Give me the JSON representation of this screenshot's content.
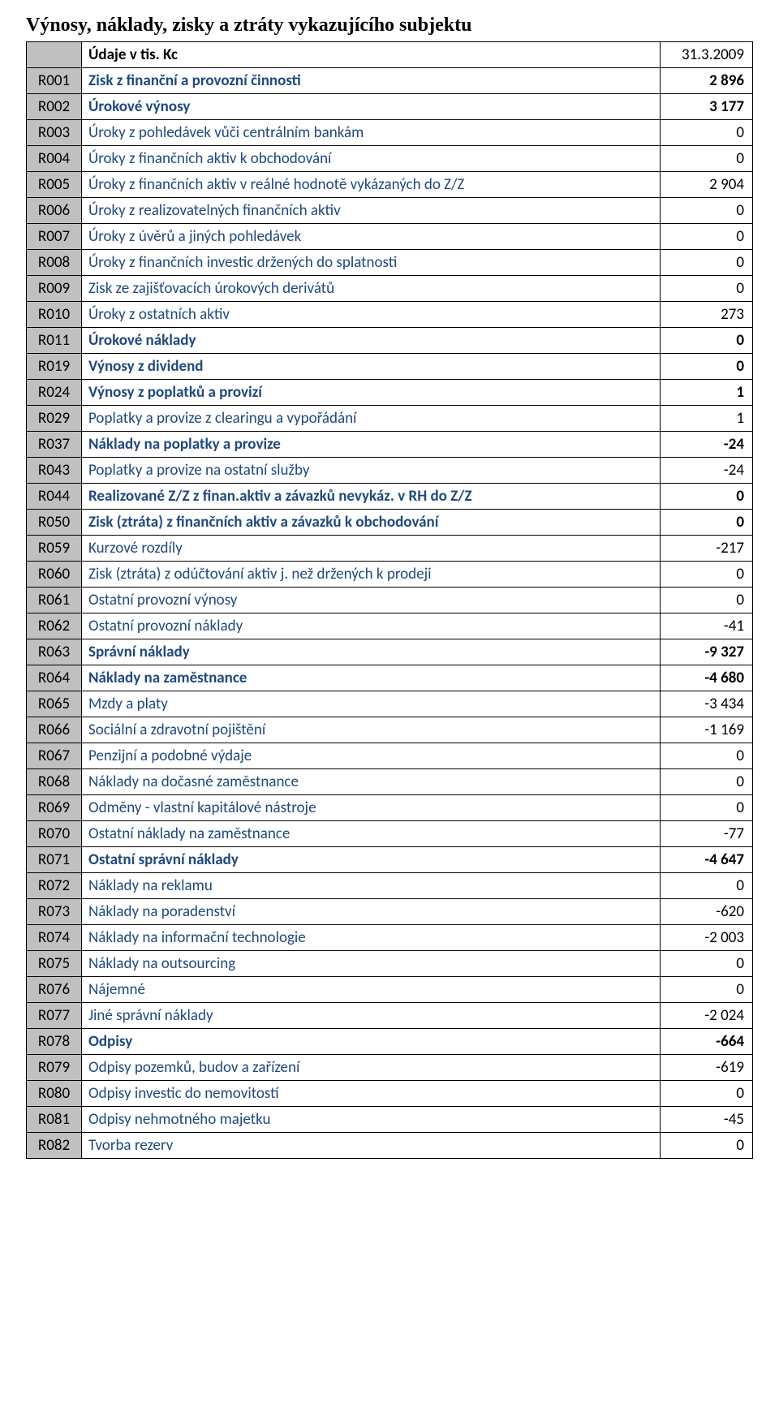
{
  "title": "Výnosy, náklady, zisky a ztráty vykazujícího subjektu",
  "header": {
    "label": "Údaje v tis. Kc",
    "value": "31.3.2009"
  },
  "colors": {
    "label_text": "#1f497d",
    "code_bg": "#c0c0c0",
    "border": "#000000",
    "background": "#ffffff"
  },
  "rows": [
    {
      "code": "R001",
      "label": "Zisk z finanční  a provozní činnosti",
      "value": "2 896",
      "bold": true
    },
    {
      "code": "R002",
      "label": "Úrokové výnosy",
      "value": "3 177",
      "bold": true
    },
    {
      "code": "R003",
      "label": "Úroky z pohledávek vůči centrálním bankám",
      "value": "0",
      "bold": false
    },
    {
      "code": "R004",
      "label": "Úroky z finančních aktiv k obchodování",
      "value": "0",
      "bold": false
    },
    {
      "code": "R005",
      "label": "Úroky z finančních aktiv v reálné hodnotě vykázaných do Z/Z",
      "value": "2 904",
      "bold": false
    },
    {
      "code": "R006",
      "label": "Úroky z realizovatelných finančních aktiv",
      "value": "0",
      "bold": false
    },
    {
      "code": "R007",
      "label": "Úroky z úvěrů a jiných pohledávek",
      "value": "0",
      "bold": false
    },
    {
      "code": "R008",
      "label": "Úroky z finančních investic držených do splatnosti",
      "value": "0",
      "bold": false
    },
    {
      "code": "R009",
      "label": "Zisk ze zajišťovacích úrokových derivátů",
      "value": "0",
      "bold": false
    },
    {
      "code": "R010",
      "label": "Úroky z ostatních aktiv",
      "value": "273",
      "bold": false
    },
    {
      "code": "R011",
      "label": "Úrokové náklady",
      "value": "0",
      "bold": true
    },
    {
      "code": "R019",
      "label": "Výnosy z dividend",
      "value": "0",
      "bold": true
    },
    {
      "code": "R024",
      "label": "Výnosy z poplatků a provizí",
      "value": "1",
      "bold": true
    },
    {
      "code": "R029",
      "label": "Poplatky a provize z clearingu a vypořádání",
      "value": "1",
      "bold": false
    },
    {
      "code": "R037",
      "label": "Náklady na poplatky a provize",
      "value": "-24",
      "bold": true
    },
    {
      "code": "R043",
      "label": "Poplatky a provize na ostatní služby",
      "value": "-24",
      "bold": false
    },
    {
      "code": "R044",
      "label": "Realizované Z/Z z finan.aktiv a závazků nevykáz. v RH do Z/Z",
      "value": "0",
      "bold": true
    },
    {
      "code": "R050",
      "label": "Zisk (ztráta) z finančních aktiv a závazků  k obchodování",
      "value": "0",
      "bold": true
    },
    {
      "code": "R059",
      "label": "Kurzové rozdíly",
      "value": "-217",
      "bold": false
    },
    {
      "code": "R060",
      "label": "Zisk (ztráta) z odúčtování aktiv j. než držených k prodeji",
      "value": "0",
      "bold": false
    },
    {
      "code": "R061",
      "label": "Ostatní provozní výnosy",
      "value": "0",
      "bold": false
    },
    {
      "code": "R062",
      "label": "Ostatní provozní náklady",
      "value": "-41",
      "bold": false
    },
    {
      "code": "R063",
      "label": "Správní náklady",
      "value": "-9 327",
      "bold": true
    },
    {
      "code": "R064",
      "label": "Náklady na zaměstnance",
      "value": "-4 680",
      "bold": true
    },
    {
      "code": "R065",
      "label": "Mzdy a platy",
      "value": "-3 434",
      "bold": false
    },
    {
      "code": "R066",
      "label": "Sociální a zdravotní pojištění",
      "value": "-1 169",
      "bold": false
    },
    {
      "code": "R067",
      "label": "Penzijní a podobné výdaje",
      "value": "0",
      "bold": false
    },
    {
      "code": "R068",
      "label": "Náklady na dočasné  zaměstnance",
      "value": "0",
      "bold": false
    },
    {
      "code": "R069",
      "label": "Odměny - vlastní kapitálové nástroje",
      "value": "0",
      "bold": false
    },
    {
      "code": "R070",
      "label": "Ostatní náklady na zaměstnance",
      "value": "-77",
      "bold": false
    },
    {
      "code": "R071",
      "label": "Ostatní správní náklady",
      "value": "-4 647",
      "bold": true
    },
    {
      "code": "R072",
      "label": "Náklady na reklamu",
      "value": "0",
      "bold": false
    },
    {
      "code": "R073",
      "label": "Náklady na poradenství",
      "value": "-620",
      "bold": false
    },
    {
      "code": "R074",
      "label": "Náklady na informační technologie",
      "value": "-2 003",
      "bold": false
    },
    {
      "code": "R075",
      "label": "Náklady na outsourcing",
      "value": "0",
      "bold": false
    },
    {
      "code": "R076",
      "label": "Nájemné",
      "value": "0",
      "bold": false
    },
    {
      "code": "R077",
      "label": "Jiné správní náklady",
      "value": "-2 024",
      "bold": false
    },
    {
      "code": "R078",
      "label": "Odpisy",
      "value": "-664",
      "bold": true
    },
    {
      "code": "R079",
      "label": "Odpisy pozemků, budov a zařízení",
      "value": "-619",
      "bold": false
    },
    {
      "code": "R080",
      "label": "Odpisy investic do nemovitostí",
      "value": "0",
      "bold": false
    },
    {
      "code": "R081",
      "label": "Odpisy nehmotného majetku",
      "value": "-45",
      "bold": false
    },
    {
      "code": "R082",
      "label": "Tvorba rezerv",
      "value": "0",
      "bold": false
    }
  ]
}
